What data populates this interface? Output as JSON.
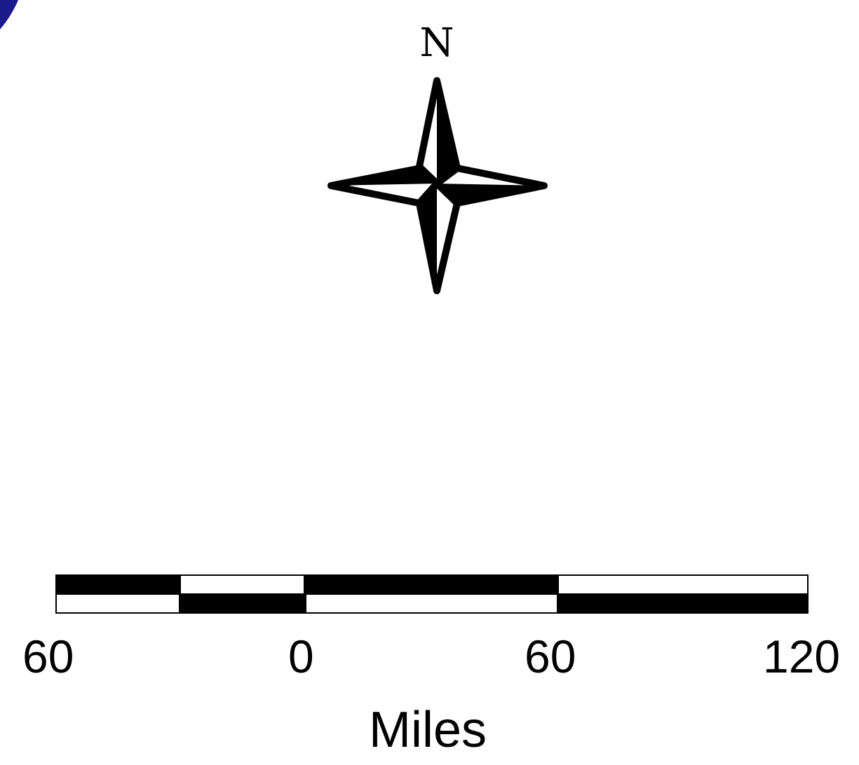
{
  "north_arrow": {
    "label": "N"
  },
  "scale_bar": {
    "units": "Miles",
    "ticks": [
      "60",
      "0",
      "60",
      "120"
    ]
  },
  "colors": {
    "ink": "#000000",
    "paper": "#ffffff",
    "map_feature": "#1a1a8c"
  }
}
